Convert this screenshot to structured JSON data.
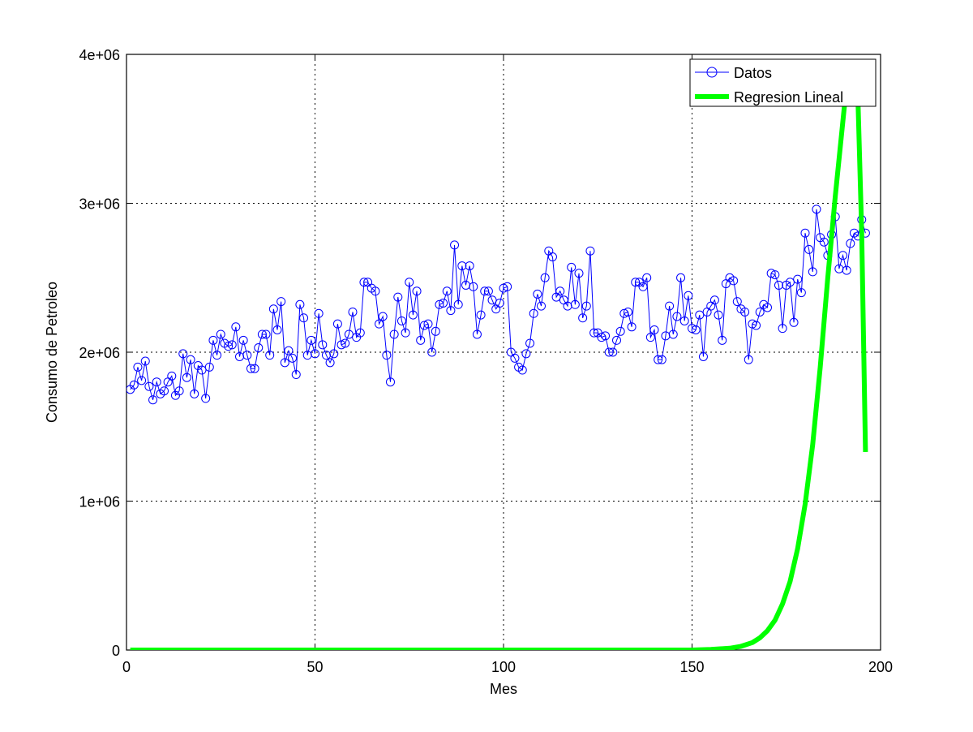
{
  "chart_data": {
    "type": "line",
    "title": "",
    "xlabel": "Mes",
    "ylabel": "Consumo de Petroleo",
    "xlim": [
      0,
      200
    ],
    "ylim": [
      0,
      4000000
    ],
    "xticks": [
      0,
      50,
      100,
      150,
      200
    ],
    "xtick_labels": [
      "0",
      "50",
      "100",
      "150",
      "200"
    ],
    "yticks": [
      0,
      1000000,
      2000000,
      3000000,
      4000000
    ],
    "ytick_labels": [
      "0",
      "1e+06",
      "2e+06",
      "3e+06",
      "4e+06"
    ],
    "grid": true,
    "legend_position": "top-right",
    "series": [
      {
        "name": "Datos",
        "color": "#0000ff",
        "marker": "circle",
        "x": [
          1,
          2,
          3,
          4,
          5,
          6,
          7,
          8,
          9,
          10,
          11,
          12,
          13,
          14,
          15,
          16,
          17,
          18,
          19,
          20,
          21,
          22,
          23,
          24,
          25,
          26,
          27,
          28,
          29,
          30,
          31,
          32,
          33,
          34,
          35,
          36,
          37,
          38,
          39,
          40,
          41,
          42,
          43,
          44,
          45,
          46,
          47,
          48,
          49,
          50,
          51,
          52,
          53,
          54,
          55,
          56,
          57,
          58,
          59,
          60,
          61,
          62,
          63,
          64,
          65,
          66,
          67,
          68,
          69,
          70,
          71,
          72,
          73,
          74,
          75,
          76,
          77,
          78,
          79,
          80,
          81,
          82,
          83,
          84,
          85,
          86,
          87,
          88,
          89,
          90,
          91,
          92,
          93,
          94,
          95,
          96,
          97,
          98,
          99,
          100,
          101,
          102,
          103,
          104,
          105,
          106,
          107,
          108,
          109,
          110,
          111,
          112,
          113,
          114,
          115,
          116,
          117,
          118,
          119,
          120,
          121,
          122,
          123,
          124,
          125,
          126,
          127,
          128,
          129,
          130,
          131,
          132,
          133,
          134,
          135,
          136,
          137,
          138,
          139,
          140,
          141,
          142,
          143,
          144,
          145,
          146,
          147,
          148,
          149,
          150,
          151,
          152,
          153,
          154,
          155,
          156,
          157,
          158,
          159,
          160,
          161,
          162,
          163,
          164,
          165,
          166,
          167,
          168,
          169,
          170,
          171,
          172,
          173,
          174,
          175,
          176,
          177,
          178,
          179,
          180,
          181,
          182,
          183,
          184,
          185,
          186,
          187,
          188,
          189,
          190,
          191,
          192,
          193,
          194,
          195,
          196
        ],
        "y": [
          1750000,
          1780000,
          1900000,
          1810000,
          1940000,
          1770000,
          1680000,
          1800000,
          1720000,
          1740000,
          1800000,
          1840000,
          1710000,
          1740000,
          1990000,
          1830000,
          1950000,
          1720000,
          1910000,
          1880000,
          1690000,
          1900000,
          2080000,
          1980000,
          2120000,
          2060000,
          2040000,
          2050000,
          2170000,
          1970000,
          2080000,
          1980000,
          1890000,
          1890000,
          2030000,
          2120000,
          2120000,
          1980000,
          2290000,
          2150000,
          2340000,
          1930000,
          2010000,
          1960000,
          1850000,
          2320000,
          2230000,
          1980000,
          2080000,
          1990000,
          2260000,
          2050000,
          1980000,
          1930000,
          1990000,
          2190000,
          2050000,
          2060000,
          2120000,
          2270000,
          2100000,
          2130000,
          2470000,
          2470000,
          2430000,
          2410000,
          2190000,
          2240000,
          1980000,
          1800000,
          2120000,
          2370000,
          2210000,
          2130000,
          2470000,
          2250000,
          2410000,
          2080000,
          2180000,
          2190000,
          2000000,
          2140000,
          2320000,
          2330000,
          2410000,
          2280000,
          2720000,
          2320000,
          2580000,
          2450000,
          2580000,
          2440000,
          2120000,
          2250000,
          2410000,
          2410000,
          2350000,
          2290000,
          2330000,
          2430000,
          2440000,
          2000000,
          1960000,
          1900000,
          1880000,
          1990000,
          2060000,
          2260000,
          2390000,
          2310000,
          2500000,
          2680000,
          2640000,
          2370000,
          2410000,
          2350000,
          2310000,
          2570000,
          2320000,
          2530000,
          2230000,
          2310000,
          2680000,
          2130000,
          2130000,
          2100000,
          2110000,
          2000000,
          2000000,
          2080000,
          2140000,
          2260000,
          2270000,
          2170000,
          2470000,
          2470000,
          2440000,
          2500000,
          2100000,
          2150000,
          1950000,
          1950000,
          2110000,
          2310000,
          2120000,
          2240000,
          2500000,
          2210000,
          2380000,
          2160000,
          2150000,
          2250000,
          1970000,
          2270000,
          2310000,
          2350000,
          2250000,
          2080000,
          2460000,
          2500000,
          2480000,
          2340000,
          2290000,
          2270000,
          1950000,
          2190000,
          2180000,
          2270000,
          2320000,
          2300000,
          2530000,
          2520000,
          2450000,
          2160000,
          2450000,
          2470000,
          2200000,
          2490000,
          2400000,
          2800000,
          2690000,
          2540000,
          2960000,
          2770000,
          2740000,
          2650000,
          2790000,
          2910000,
          2560000,
          2650000,
          2550000,
          2730000,
          2800000,
          2780000,
          2890000,
          2800000
        ]
      },
      {
        "name": "Regresion Lineal",
        "color": "#00ff00",
        "marker": "none",
        "x": [
          1,
          50,
          100,
          150,
          155,
          160,
          163,
          166,
          168,
          170,
          172,
          174,
          176,
          178,
          180,
          182,
          184,
          186,
          188,
          190,
          191,
          192,
          193,
          194,
          195,
          196
        ],
        "y": [
          0,
          0,
          0,
          0,
          4000,
          12000,
          25000,
          50000,
          82000,
          130000,
          200000,
          310000,
          460000,
          680000,
          980000,
          1380000,
          1900000,
          2500000,
          3050000,
          3550000,
          3800000,
          3900000,
          3950000,
          3700000,
          2800000,
          1330000
        ]
      }
    ]
  }
}
